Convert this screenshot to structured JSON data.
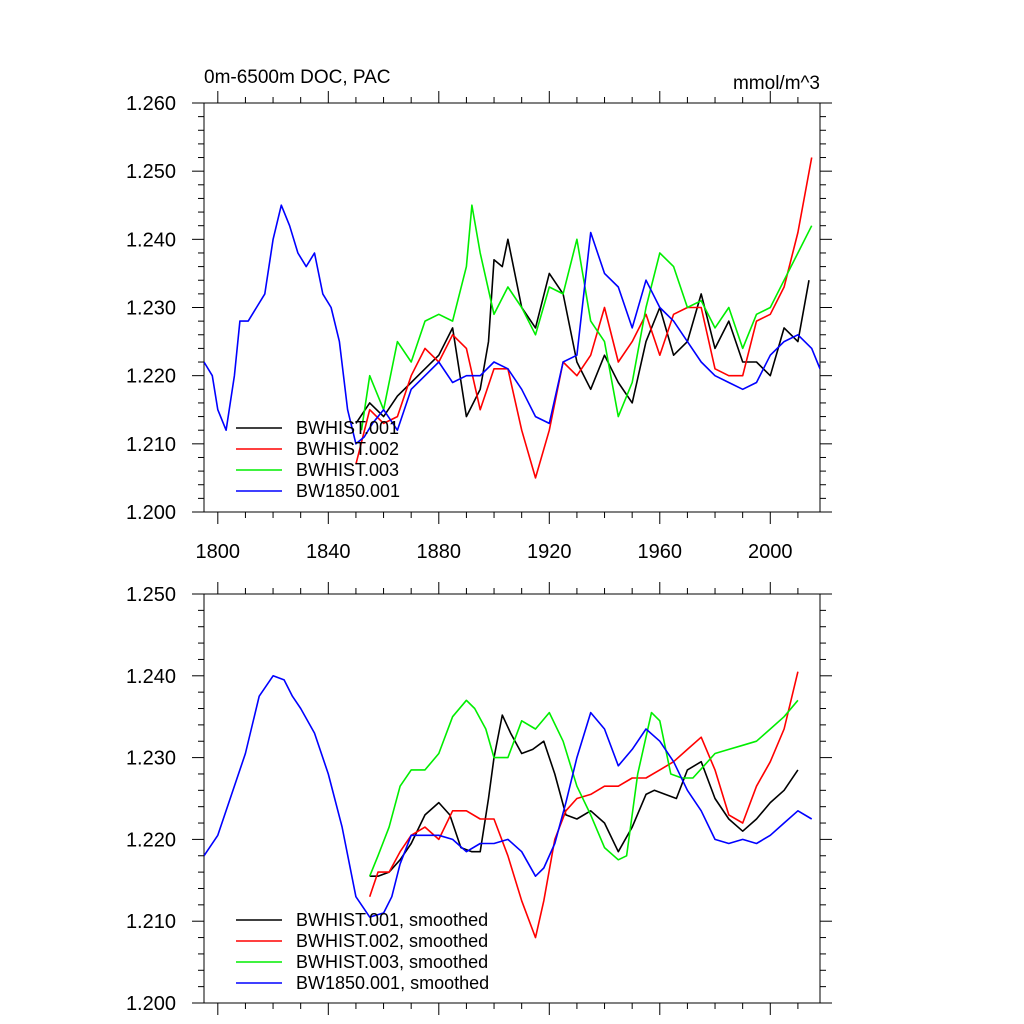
{
  "chart_data": [
    {
      "type": "line",
      "title": "0m-6500m DOC, PAC",
      "units": "mmol/m^3",
      "xlim": [
        1795,
        2018
      ],
      "ylim": [
        1.2,
        1.26
      ],
      "xticks": [
        "1800",
        "1840",
        "1880",
        "1920",
        "1960",
        "2000"
      ],
      "yticks": [
        "1.200",
        "1.210",
        "1.220",
        "1.230",
        "1.240",
        "1.250",
        "1.260"
      ],
      "legend_position": "lower-left",
      "series": [
        {
          "name": "BWHIST.001",
          "color": "#000000",
          "x": [
            1850,
            1855,
            1860,
            1865,
            1870,
            1875,
            1880,
            1885,
            1890,
            1895,
            1898,
            1900,
            1903,
            1905,
            1910,
            1915,
            1920,
            1925,
            1930,
            1935,
            1940,
            1945,
            1950,
            1955,
            1960,
            1965,
            1970,
            1975,
            1980,
            1985,
            1990,
            1995,
            2000,
            2005,
            2010,
            2014
          ],
          "y": [
            1.213,
            1.216,
            1.214,
            1.217,
            1.219,
            1.221,
            1.223,
            1.227,
            1.214,
            1.218,
            1.225,
            1.237,
            1.236,
            1.24,
            1.23,
            1.227,
            1.235,
            1.232,
            1.222,
            1.218,
            1.223,
            1.219,
            1.216,
            1.225,
            1.23,
            1.223,
            1.225,
            1.232,
            1.224,
            1.228,
            1.222,
            1.222,
            1.22,
            1.227,
            1.225,
            1.234
          ]
        },
        {
          "name": "BWHIST.002",
          "color": "#ff0000",
          "x": [
            1850,
            1855,
            1860,
            1865,
            1870,
            1875,
            1880,
            1885,
            1890,
            1895,
            1900,
            1905,
            1910,
            1915,
            1920,
            1925,
            1930,
            1935,
            1940,
            1945,
            1950,
            1955,
            1960,
            1965,
            1970,
            1975,
            1980,
            1985,
            1990,
            1995,
            2000,
            2005,
            2010,
            2015
          ],
          "y": [
            1.207,
            1.215,
            1.213,
            1.214,
            1.22,
            1.224,
            1.222,
            1.226,
            1.224,
            1.215,
            1.221,
            1.221,
            1.212,
            1.205,
            1.212,
            1.222,
            1.22,
            1.223,
            1.23,
            1.222,
            1.225,
            1.229,
            1.223,
            1.229,
            1.23,
            1.23,
            1.221,
            1.22,
            1.22,
            1.228,
            1.229,
            1.233,
            1.241,
            1.252
          ]
        },
        {
          "name": "BWHIST.003",
          "color": "#00ee00",
          "x": [
            1852,
            1855,
            1860,
            1865,
            1870,
            1875,
            1880,
            1885,
            1890,
            1892,
            1895,
            1900,
            1905,
            1910,
            1915,
            1920,
            1925,
            1930,
            1935,
            1940,
            1945,
            1950,
            1955,
            1960,
            1965,
            1970,
            1975,
            1980,
            1985,
            1990,
            1995,
            2000,
            2005,
            2010,
            2015
          ],
          "y": [
            1.212,
            1.22,
            1.215,
            1.225,
            1.222,
            1.228,
            1.229,
            1.228,
            1.236,
            1.245,
            1.238,
            1.229,
            1.233,
            1.23,
            1.226,
            1.233,
            1.232,
            1.24,
            1.228,
            1.225,
            1.214,
            1.219,
            1.23,
            1.238,
            1.236,
            1.23,
            1.231,
            1.227,
            1.23,
            1.224,
            1.229,
            1.23,
            1.234,
            1.238,
            1.242
          ]
        },
        {
          "name": "BW1850.001",
          "color": "#0000ff",
          "x": [
            1795,
            1798,
            1800,
            1803,
            1806,
            1808,
            1811,
            1814,
            1817,
            1820,
            1823,
            1826,
            1829,
            1832,
            1835,
            1838,
            1841,
            1844,
            1847,
            1850,
            1853,
            1856,
            1860,
            1865,
            1870,
            1875,
            1880,
            1885,
            1890,
            1895,
            1900,
            1905,
            1910,
            1915,
            1920,
            1925,
            1930,
            1935,
            1940,
            1945,
            1950,
            1955,
            1960,
            1965,
            1970,
            1975,
            1980,
            1985,
            1990,
            1995,
            2000,
            2005,
            2010,
            2015,
            2018
          ],
          "y": [
            1.222,
            1.22,
            1.215,
            1.212,
            1.22,
            1.228,
            1.228,
            1.23,
            1.232,
            1.24,
            1.245,
            1.242,
            1.238,
            1.236,
            1.238,
            1.232,
            1.23,
            1.225,
            1.215,
            1.21,
            1.211,
            1.213,
            1.215,
            1.212,
            1.218,
            1.22,
            1.222,
            1.219,
            1.22,
            1.22,
            1.222,
            1.221,
            1.218,
            1.214,
            1.213,
            1.222,
            1.223,
            1.241,
            1.235,
            1.233,
            1.227,
            1.234,
            1.23,
            1.228,
            1.225,
            1.222,
            1.22,
            1.219,
            1.218,
            1.219,
            1.223,
            1.225,
            1.226,
            1.224,
            1.221
          ]
        }
      ]
    },
    {
      "type": "line",
      "xlim": [
        1795,
        2018
      ],
      "ylim": [
        1.2,
        1.25
      ],
      "yticks": [
        "1.200",
        "1.210",
        "1.220",
        "1.230",
        "1.240",
        "1.250"
      ],
      "legend_position": "lower-left",
      "series": [
        {
          "name": "BWHIST.001, smoothed",
          "color": "#000000",
          "x": [
            1855,
            1858,
            1862,
            1866,
            1870,
            1875,
            1880,
            1884,
            1888,
            1892,
            1895,
            1898,
            1900,
            1903,
            1906,
            1910,
            1914,
            1918,
            1922,
            1926,
            1930,
            1935,
            1940,
            1945,
            1950,
            1955,
            1958,
            1962,
            1966,
            1970,
            1975,
            1980,
            1985,
            1990,
            1995,
            2000,
            2005,
            2010
          ],
          "y": [
            1.2155,
            1.2155,
            1.216,
            1.2175,
            1.2195,
            1.223,
            1.2245,
            1.223,
            1.219,
            1.2185,
            1.2185,
            1.225,
            1.23,
            1.2352,
            1.233,
            1.2305,
            1.231,
            1.232,
            1.228,
            1.223,
            1.2225,
            1.2235,
            1.222,
            1.2185,
            1.2215,
            1.2255,
            1.226,
            1.2255,
            1.225,
            1.2285,
            1.2295,
            1.225,
            1.2225,
            1.221,
            1.2225,
            1.2245,
            1.226,
            1.2285
          ]
        },
        {
          "name": "BWHIST.002, smoothed",
          "color": "#ff0000",
          "x": [
            1855,
            1858,
            1862,
            1866,
            1870,
            1875,
            1880,
            1885,
            1890,
            1895,
            1900,
            1905,
            1910,
            1915,
            1918,
            1922,
            1926,
            1930,
            1935,
            1940,
            1945,
            1950,
            1955,
            1960,
            1965,
            1970,
            1975,
            1980,
            1985,
            1990,
            1995,
            2000,
            2005,
            2010
          ],
          "y": [
            1.213,
            1.216,
            1.216,
            1.2185,
            1.2205,
            1.2215,
            1.22,
            1.2235,
            1.2235,
            1.2225,
            1.2225,
            1.218,
            1.2125,
            1.208,
            1.2125,
            1.22,
            1.2235,
            1.225,
            1.2255,
            1.2265,
            1.2265,
            1.2275,
            1.2275,
            1.2285,
            1.2295,
            1.231,
            1.2325,
            1.2285,
            1.223,
            1.222,
            1.2265,
            1.2295,
            1.2335,
            1.2405
          ]
        },
        {
          "name": "BWHIST.003, smoothed",
          "color": "#00ee00",
          "x": [
            1855,
            1858,
            1862,
            1866,
            1870,
            1875,
            1880,
            1885,
            1890,
            1893,
            1897,
            1900,
            1905,
            1910,
            1915,
            1920,
            1925,
            1930,
            1935,
            1940,
            1945,
            1948,
            1952,
            1957,
            1960,
            1964,
            1968,
            1972,
            1976,
            1980,
            1985,
            1990,
            1995,
            2000,
            2005,
            2010
          ],
          "y": [
            1.2155,
            1.218,
            1.2215,
            1.2265,
            1.2285,
            1.2285,
            1.2305,
            1.235,
            1.237,
            1.236,
            1.2335,
            1.23,
            1.23,
            1.2345,
            1.2335,
            1.2355,
            1.232,
            1.2265,
            1.223,
            1.219,
            1.2175,
            1.218,
            1.228,
            1.2355,
            1.2345,
            1.228,
            1.2275,
            1.2275,
            1.229,
            1.2305,
            1.231,
            1.2315,
            1.232,
            1.2335,
            1.235,
            1.237
          ]
        },
        {
          "name": "BW1850.001, smoothed",
          "color": "#0000ff",
          "x": [
            1795,
            1800,
            1805,
            1810,
            1815,
            1820,
            1824,
            1827,
            1830,
            1835,
            1840,
            1845,
            1850,
            1855,
            1860,
            1863,
            1866,
            1870,
            1875,
            1880,
            1885,
            1890,
            1895,
            1900,
            1905,
            1910,
            1915,
            1918,
            1922,
            1926,
            1930,
            1935,
            1940,
            1945,
            1950,
            1955,
            1960,
            1965,
            1970,
            1975,
            1980,
            1985,
            1990,
            1995,
            2000,
            2005,
            2010,
            2015
          ],
          "y": [
            1.218,
            1.2205,
            1.2255,
            1.2305,
            1.2375,
            1.24,
            1.2395,
            1.2375,
            1.236,
            1.233,
            1.228,
            1.2215,
            1.213,
            1.2105,
            1.211,
            1.213,
            1.217,
            1.2205,
            1.2205,
            1.2205,
            1.22,
            1.2185,
            1.2195,
            1.2195,
            1.22,
            1.2185,
            1.2155,
            1.2165,
            1.2195,
            1.2245,
            1.23,
            1.2355,
            1.2335,
            1.229,
            1.231,
            1.2335,
            1.232,
            1.2295,
            1.226,
            1.2235,
            1.22,
            1.2195,
            1.22,
            1.2195,
            1.2205,
            1.222,
            1.2235,
            1.2225
          ]
        }
      ]
    }
  ]
}
